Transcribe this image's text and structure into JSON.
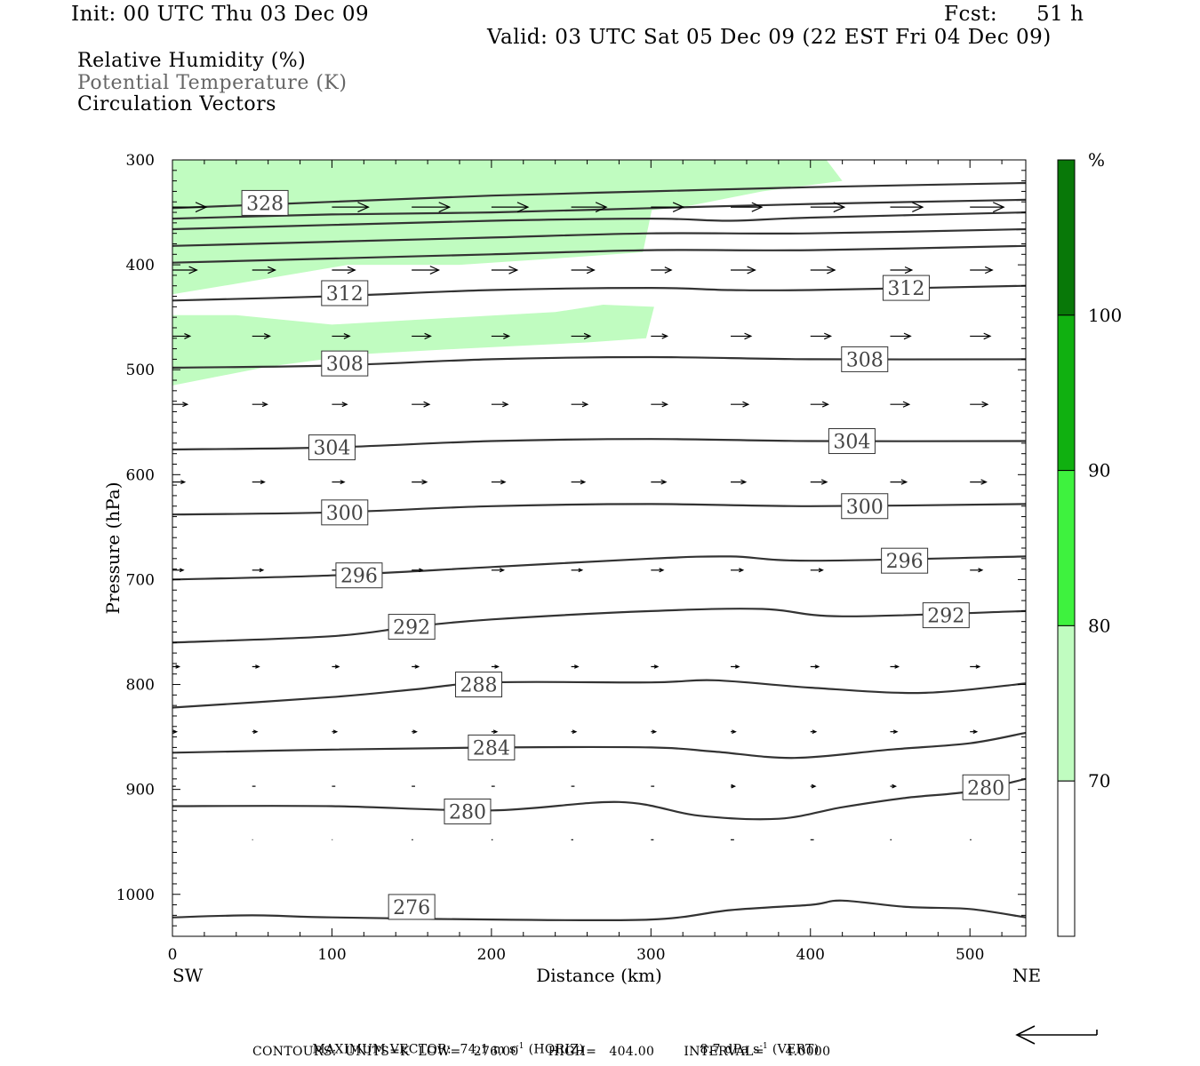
{
  "header": {
    "init": "Init: 00 UTC Thu 03 Dec 09",
    "fcst_label": "Fcst:",
    "fcst_value": "51 h",
    "valid": "Valid: 03 UTC Sat 05 Dec 09 (22 EST Fri 04 Dec 09)"
  },
  "legend": {
    "line1": "Relative Humidity (%)",
    "line2": "Potential Temperature (K)",
    "line3": "Circulation Vectors"
  },
  "footer": {
    "max_vector_label": "MAXIMUM VECTOR:",
    "horiz": "74.1 m s",
    "horiz_exp": "-1",
    "horiz_tag": "(HORIZ)",
    "vert": "8.7 dPa s",
    "vert_exp": "-1",
    "vert_tag": "(VERT)",
    "contours": "CONTOURS:  UNITS=K  LOW=   276.00       HIGH=   404.00       INTERVAL=     4.0000"
  },
  "chart_data": {
    "type": "cross-section",
    "title": "",
    "xlabel": "Distance (km)",
    "ylabel": "Pressure (hPa)",
    "xlim": [
      0,
      535
    ],
    "ylim": [
      1040,
      300
    ],
    "xticks": [
      0,
      100,
      200,
      300,
      400,
      500
    ],
    "yticks": [
      300,
      400,
      500,
      600,
      700,
      800,
      900,
      1000
    ],
    "x_end_labels": {
      "left": "SW",
      "right": "NE"
    },
    "colorbar": {
      "unit": "%",
      "levels": [
        70,
        80,
        90,
        100
      ],
      "colors": [
        "#ffffff",
        "#c0fcc0",
        "#3ef23e",
        "#10b010",
        "#087808"
      ]
    },
    "rh_shading": [
      {
        "band": "70-80",
        "color": "#c0fcc0",
        "polygon": [
          [
            0,
            300
          ],
          [
            410,
            300
          ],
          [
            420,
            320
          ],
          [
            370,
            330
          ],
          [
            320,
            345
          ],
          [
            250,
            355
          ],
          [
            150,
            362
          ],
          [
            0,
            382
          ],
          [
            0,
            300
          ]
        ]
      },
      {
        "band": "70-80",
        "color": "#c0fcc0",
        "polygon": [
          [
            0,
            362
          ],
          [
            30,
            348
          ],
          [
            130,
            340
          ],
          [
            220,
            330
          ],
          [
            300,
            318
          ],
          [
            320,
            312
          ],
          [
            250,
            315
          ],
          [
            150,
            325
          ],
          [
            30,
            345
          ],
          [
            0,
            358
          ]
        ]
      },
      {
        "band": "70-80",
        "color": "#c0fcc0",
        "polygon": [
          [
            0,
            375
          ],
          [
            0,
            428
          ],
          [
            40,
            418
          ],
          [
            110,
            400
          ],
          [
            180,
            400
          ],
          [
            240,
            394
          ],
          [
            295,
            388
          ],
          [
            303,
            330
          ],
          [
            250,
            336
          ],
          [
            225,
            344
          ],
          [
            150,
            350
          ],
          [
            60,
            362
          ]
        ]
      },
      {
        "band": "70-80",
        "color": "#c0fcc0",
        "polygon": [
          [
            0,
            448
          ],
          [
            0,
            515
          ],
          [
            60,
            497
          ],
          [
            120,
            485
          ],
          [
            180,
            480
          ],
          [
            260,
            474
          ],
          [
            297,
            470
          ],
          [
            302,
            440
          ],
          [
            270,
            438
          ],
          [
            240,
            445
          ],
          [
            180,
            450
          ],
          [
            100,
            457
          ],
          [
            40,
            448
          ]
        ]
      }
    ],
    "theta_contours": [
      {
        "level": 328,
        "label_at": [
          58,
          341
        ],
        "points": [
          [
            0,
            346
          ],
          [
            100,
            340
          ],
          [
            200,
            334
          ],
          [
            300,
            330
          ],
          [
            400,
            326
          ],
          [
            535,
            322
          ]
        ]
      },
      {
        "level": null,
        "points": [
          [
            0,
            356
          ],
          [
            100,
            352
          ],
          [
            200,
            350
          ],
          [
            300,
            346
          ],
          [
            400,
            342
          ],
          [
            535,
            338
          ]
        ]
      },
      {
        "level": null,
        "points": [
          [
            0,
            366
          ],
          [
            100,
            362
          ],
          [
            200,
            358
          ],
          [
            300,
            356
          ],
          [
            350,
            358
          ],
          [
            400,
            355
          ],
          [
            535,
            350
          ]
        ]
      },
      {
        "level": null,
        "points": [
          [
            0,
            382
          ],
          [
            100,
            378
          ],
          [
            200,
            374
          ],
          [
            300,
            370
          ],
          [
            400,
            370
          ],
          [
            535,
            366
          ]
        ]
      },
      {
        "level": null,
        "points": [
          [
            0,
            398
          ],
          [
            100,
            394
          ],
          [
            200,
            390
          ],
          [
            300,
            386
          ],
          [
            400,
            386
          ],
          [
            535,
            382
          ]
        ]
      },
      {
        "level": 312,
        "label_at": [
          108,
          427
        ],
        "points": [
          [
            0,
            434
          ],
          [
            100,
            430
          ],
          [
            200,
            424
          ],
          [
            300,
            422
          ],
          [
            350,
            424
          ],
          [
            400,
            424
          ],
          [
            535,
            420
          ]
        ]
      },
      {
        "level": 312,
        "label_at": [
          460,
          422
        ],
        "points": []
      },
      {
        "level": 308,
        "label_at": [
          108,
          494
        ],
        "points": [
          [
            0,
            498
          ],
          [
            100,
            496
          ],
          [
            200,
            490
          ],
          [
            300,
            488
          ],
          [
            400,
            490
          ],
          [
            535,
            490
          ]
        ]
      },
      {
        "level": 308,
        "label_at": [
          434,
          490
        ],
        "points": []
      },
      {
        "level": 304,
        "label_at": [
          100,
          574
        ],
        "points": [
          [
            0,
            576
          ],
          [
            100,
            574
          ],
          [
            200,
            568
          ],
          [
            300,
            566
          ],
          [
            400,
            568
          ],
          [
            535,
            568
          ]
        ]
      },
      {
        "level": 304,
        "label_at": [
          426,
          568
        ],
        "points": []
      },
      {
        "level": 300,
        "label_at": [
          108,
          636
        ],
        "points": [
          [
            0,
            638
          ],
          [
            100,
            636
          ],
          [
            200,
            630
          ],
          [
            300,
            628
          ],
          [
            400,
            630
          ],
          [
            535,
            628
          ]
        ]
      },
      {
        "level": 300,
        "label_at": [
          434,
          630
        ],
        "points": []
      },
      {
        "level": 296,
        "label_at": [
          117,
          696
        ],
        "points": [
          [
            0,
            700
          ],
          [
            100,
            696
          ],
          [
            200,
            688
          ],
          [
            300,
            680
          ],
          [
            350,
            678
          ],
          [
            400,
            682
          ],
          [
            535,
            678
          ]
        ]
      },
      {
        "level": 296,
        "label_at": [
          459,
          682
        ],
        "points": []
      },
      {
        "level": 292,
        "label_at": [
          150,
          745
        ],
        "points": [
          [
            0,
            760
          ],
          [
            100,
            754
          ],
          [
            150,
            745
          ],
          [
            200,
            738
          ],
          [
            300,
            730
          ],
          [
            370,
            728
          ],
          [
            420,
            735
          ],
          [
            535,
            730
          ]
        ]
      },
      {
        "level": 292,
        "label_at": [
          485,
          734
        ],
        "points": []
      },
      {
        "level": 288,
        "label_at": [
          192,
          800
        ],
        "points": [
          [
            0,
            822
          ],
          [
            100,
            812
          ],
          [
            150,
            805
          ],
          [
            200,
            798
          ],
          [
            300,
            798
          ],
          [
            340,
            796
          ],
          [
            400,
            803
          ],
          [
            470,
            808
          ],
          [
            535,
            799
          ]
        ]
      },
      {
        "level": 284,
        "label_at": [
          200,
          860
        ],
        "points": [
          [
            0,
            865
          ],
          [
            100,
            862
          ],
          [
            200,
            860
          ],
          [
            300,
            860
          ],
          [
            340,
            864
          ],
          [
            390,
            870
          ],
          [
            450,
            862
          ],
          [
            500,
            856
          ],
          [
            535,
            846
          ]
        ]
      },
      {
        "level": 280,
        "label_at": [
          185,
          921
        ],
        "points": [
          [
            0,
            916
          ],
          [
            100,
            916
          ],
          [
            200,
            920
          ],
          [
            280,
            912
          ],
          [
            330,
            925
          ],
          [
            380,
            928
          ],
          [
            420,
            917
          ],
          [
            460,
            908
          ],
          [
            500,
            902
          ],
          [
            535,
            890
          ]
        ]
      },
      {
        "level": 280,
        "label_at": [
          510,
          898
        ],
        "points": []
      },
      {
        "level": 276,
        "label_at": [
          150,
          1012
        ],
        "points": [
          [
            0,
            1022
          ],
          [
            50,
            1020
          ],
          [
            100,
            1022
          ],
          [
            200,
            1024
          ],
          [
            300,
            1024
          ],
          [
            350,
            1015
          ],
          [
            400,
            1010
          ],
          [
            420,
            1006
          ],
          [
            460,
            1012
          ],
          [
            500,
            1014
          ],
          [
            535,
            1022
          ]
        ]
      }
    ],
    "circulation_vectors": [
      {
        "p": 345,
        "x": [
          0,
          50,
          100,
          150,
          200,
          250,
          300,
          350,
          400,
          450,
          500
        ],
        "u": [
          50,
          52,
          54,
          56,
          54,
          52,
          48,
          46,
          50,
          48,
          50
        ],
        "w": [
          0,
          0,
          0,
          0,
          0,
          0,
          0,
          0,
          0,
          0,
          0
        ]
      },
      {
        "p": 405,
        "x": [
          0,
          50,
          100,
          150,
          200,
          250,
          300,
          350,
          400,
          450,
          500
        ],
        "u": [
          36,
          34,
          34,
          40,
          38,
          34,
          30,
          36,
          36,
          32,
          33
        ],
        "w": [
          0,
          0,
          0,
          0,
          0,
          0,
          0,
          0,
          0,
          0,
          0
        ]
      },
      {
        "p": 468,
        "x": [
          0,
          50,
          100,
          150,
          200,
          250,
          300,
          350,
          400,
          450,
          500
        ],
        "u": [
          26,
          26,
          26,
          28,
          26,
          28,
          24,
          30,
          30,
          30,
          30
        ],
        "w": [
          0,
          0,
          0,
          0,
          0,
          0,
          0,
          0,
          0,
          0,
          0
        ]
      },
      {
        "p": 533,
        "x": [
          0,
          50,
          100,
          150,
          200,
          250,
          300,
          350,
          400,
          450,
          500
        ],
        "u": [
          22,
          22,
          22,
          26,
          24,
          24,
          24,
          26,
          26,
          28,
          26
        ],
        "w": [
          0,
          0,
          0,
          0,
          0,
          0,
          0,
          0,
          0,
          0,
          0
        ]
      },
      {
        "p": 607,
        "x": [
          0,
          50,
          100,
          150,
          200,
          250,
          300,
          350,
          400,
          450,
          500
        ],
        "u": [
          18,
          18,
          18,
          22,
          20,
          20,
          22,
          22,
          24,
          24,
          24
        ],
        "w": [
          0,
          0,
          0,
          0,
          0,
          0,
          0,
          0,
          0,
          0,
          0
        ]
      },
      {
        "p": 691,
        "x": [
          0,
          50,
          100,
          150,
          200,
          250,
          300,
          350,
          400,
          450,
          500
        ],
        "u": [
          16,
          16,
          16,
          16,
          18,
          16,
          18,
          18,
          18,
          18,
          18
        ],
        "w": [
          0,
          0,
          0,
          0,
          0,
          0,
          0,
          0,
          0,
          0,
          0
        ]
      },
      {
        "p": 783,
        "x": [
          0,
          50,
          100,
          150,
          200,
          250,
          300,
          350,
          400,
          450,
          500
        ],
        "u": [
          10,
          10,
          10,
          10,
          10,
          10,
          10,
          12,
          12,
          12,
          14
        ],
        "w": [
          0,
          0,
          0,
          0,
          0,
          0,
          0,
          0,
          0,
          0,
          0
        ]
      },
      {
        "p": 845,
        "x": [
          0,
          50,
          100,
          150,
          200,
          250,
          300,
          350,
          400,
          450,
          500
        ],
        "u": [
          6,
          7,
          7,
          7,
          8,
          7,
          7,
          7,
          8,
          10,
          10
        ],
        "w": [
          0,
          0,
          0,
          0,
          0,
          0,
          0,
          0,
          0,
          0,
          0
        ]
      },
      {
        "p": 897,
        "x": [
          0,
          50,
          100,
          150,
          200,
          250,
          300,
          350,
          400,
          450,
          500
        ],
        "u": [
          5,
          5,
          5,
          5,
          5,
          5,
          5,
          6,
          7,
          8,
          8
        ],
        "w": [
          0,
          0,
          0,
          0,
          0,
          0,
          0,
          0,
          0,
          0,
          0
        ]
      },
      {
        "p": 948,
        "x": [
          50,
          100,
          150,
          200,
          250,
          300,
          350,
          400,
          450,
          500
        ],
        "u": [
          1,
          1,
          2,
          2,
          3,
          4,
          5,
          5,
          2,
          2
        ],
        "w": [
          0,
          0,
          0,
          0,
          0,
          0,
          0,
          0,
          0,
          0
        ]
      }
    ],
    "reference_vector": {
      "direction": "left"
    }
  }
}
